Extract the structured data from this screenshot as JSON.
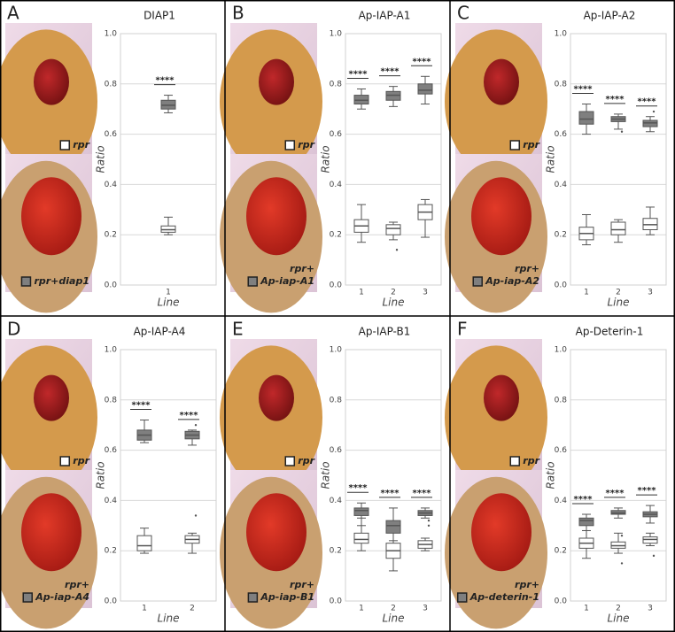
{
  "chart_data": [
    {
      "type": "box",
      "panel": "A",
      "title": "DIAP1",
      "xlabel": "Line",
      "ylabel": "Ratio",
      "categories": [
        "1"
      ],
      "ylim": [
        0,
        1
      ],
      "yticks": [
        {
          "value": 0,
          "label": "0.0"
        },
        0.2,
        0.4,
        0.6,
        0.8,
        {
          "value": 1,
          "label": "1.0"
        }
      ],
      "grid": true,
      "sig": [
        "****"
      ],
      "series": [
        {
          "name": [
            "rpr"
          ],
          "color": "#ffffff",
          "boxes": [
            {
              "whislo": 0.2,
              "q1": 0.21,
              "med": 0.22,
              "q3": 0.235,
              "whishi": 0.27
            }
          ]
        },
        {
          "name": [
            "rpr+diap1"
          ],
          "color": "#7f7f7f",
          "boxes": [
            {
              "whislo": 0.685,
              "q1": 0.7,
              "med": 0.715,
              "q3": 0.735,
              "whishi": 0.755
            }
          ]
        }
      ]
    },
    {
      "type": "box",
      "panel": "B",
      "title": "Ap-IAP-A1",
      "xlabel": "Line",
      "ylabel": "Ratio",
      "categories": [
        "1",
        "2",
        "3"
      ],
      "ylim": [
        0,
        1
      ],
      "yticks": [
        {
          "value": 0,
          "label": "0.0"
        },
        0.2,
        0.4,
        0.6,
        0.8,
        {
          "value": 1,
          "label": "1.0"
        }
      ],
      "grid": true,
      "sig": [
        "****",
        "****",
        "****"
      ],
      "series": [
        {
          "name": [
            "rpr"
          ],
          "color": "#ffffff",
          "boxes": [
            {
              "whislo": 0.17,
              "q1": 0.21,
              "med": 0.235,
              "q3": 0.26,
              "whishi": 0.32
            },
            {
              "whislo": 0.18,
              "q1": 0.2,
              "med": 0.225,
              "q3": 0.24,
              "whishi": 0.25,
              "fliers": [
                0.14
              ]
            },
            {
              "whislo": 0.19,
              "q1": 0.26,
              "med": 0.29,
              "q3": 0.32,
              "whishi": 0.34
            }
          ]
        },
        {
          "name": [
            "rpr+",
            "Ap-iap-A1"
          ],
          "color": "#7f7f7f",
          "boxes": [
            {
              "whislo": 0.7,
              "q1": 0.72,
              "med": 0.735,
              "q3": 0.755,
              "whishi": 0.78
            },
            {
              "whislo": 0.71,
              "q1": 0.735,
              "med": 0.755,
              "q3": 0.77,
              "whishi": 0.79
            },
            {
              "whislo": 0.72,
              "q1": 0.76,
              "med": 0.775,
              "q3": 0.8,
              "whishi": 0.83
            }
          ]
        }
      ]
    },
    {
      "type": "box",
      "panel": "C",
      "title": "Ap-IAP-A2",
      "xlabel": "Line",
      "ylabel": "Ratio",
      "categories": [
        "1",
        "2",
        "3"
      ],
      "ylim": [
        0,
        1
      ],
      "yticks": [
        {
          "value": 0,
          "label": "0.0"
        },
        0.2,
        0.4,
        0.6,
        0.8,
        {
          "value": 1,
          "label": "1.0"
        }
      ],
      "grid": true,
      "sig": [
        "****",
        "****",
        "****"
      ],
      "series": [
        {
          "name": [
            "rpr"
          ],
          "color": "#ffffff",
          "boxes": [
            {
              "whislo": 0.16,
              "q1": 0.18,
              "med": 0.205,
              "q3": 0.23,
              "whishi": 0.28
            },
            {
              "whislo": 0.17,
              "q1": 0.2,
              "med": 0.22,
              "q3": 0.25,
              "whishi": 0.26
            },
            {
              "whislo": 0.2,
              "q1": 0.22,
              "med": 0.24,
              "q3": 0.265,
              "whishi": 0.31
            }
          ]
        },
        {
          "name": [
            "rpr+",
            "Ap-iap-A2"
          ],
          "color": "#7f7f7f",
          "boxes": [
            {
              "whislo": 0.6,
              "q1": 0.64,
              "med": 0.66,
              "q3": 0.69,
              "whishi": 0.72
            },
            {
              "whislo": 0.62,
              "q1": 0.65,
              "med": 0.66,
              "q3": 0.67,
              "whishi": 0.68,
              "fliers": [
                0.61
              ]
            },
            {
              "whislo": 0.61,
              "q1": 0.63,
              "med": 0.645,
              "q3": 0.655,
              "whishi": 0.67,
              "fliers": [
                0.69
              ]
            }
          ]
        }
      ]
    },
    {
      "type": "box",
      "panel": "D",
      "title": "Ap-IAP-A4",
      "xlabel": "Line",
      "ylabel": "Ratio",
      "categories": [
        "1",
        "2"
      ],
      "ylim": [
        0,
        1
      ],
      "yticks": [
        {
          "value": 0,
          "label": "0.0"
        },
        0.2,
        0.4,
        0.6,
        0.8,
        {
          "value": 1,
          "label": "1.0"
        }
      ],
      "grid": true,
      "sig": [
        "****",
        "****"
      ],
      "series": [
        {
          "name": [
            "rpr"
          ],
          "color": "#ffffff",
          "boxes": [
            {
              "whislo": 0.19,
              "q1": 0.2,
              "med": 0.22,
              "q3": 0.26,
              "whishi": 0.29
            },
            {
              "whislo": 0.19,
              "q1": 0.23,
              "med": 0.245,
              "q3": 0.26,
              "whishi": 0.27,
              "fliers": [
                0.34
              ]
            }
          ]
        },
        {
          "name": [
            "rpr+",
            "Ap-iap-A4"
          ],
          "color": "#7f7f7f",
          "boxes": [
            {
              "whislo": 0.63,
              "q1": 0.64,
              "med": 0.66,
              "q3": 0.68,
              "whishi": 0.72
            },
            {
              "whislo": 0.62,
              "q1": 0.645,
              "med": 0.66,
              "q3": 0.675,
              "whishi": 0.68,
              "fliers": [
                0.7
              ]
            }
          ]
        }
      ]
    },
    {
      "type": "box",
      "panel": "E",
      "title": "Ap-IAP-B1",
      "xlabel": "Line",
      "ylabel": "Ratio",
      "categories": [
        "1",
        "2",
        "3"
      ],
      "ylim": [
        0,
        1
      ],
      "yticks": [
        {
          "value": 0,
          "label": "0.0"
        },
        0.2,
        0.4,
        0.6,
        0.8,
        {
          "value": 1,
          "label": "1.0"
        }
      ],
      "grid": true,
      "sig": [
        "****",
        "****",
        "****"
      ],
      "series": [
        {
          "name": [
            "rpr"
          ],
          "color": "#ffffff",
          "boxes": [
            {
              "whislo": 0.2,
              "q1": 0.23,
              "med": 0.245,
              "q3": 0.27,
              "whishi": 0.33
            },
            {
              "whislo": 0.12,
              "q1": 0.17,
              "med": 0.2,
              "q3": 0.23,
              "whishi": 0.28
            },
            {
              "whislo": 0.2,
              "q1": 0.21,
              "med": 0.225,
              "q3": 0.24,
              "whishi": 0.25
            }
          ]
        },
        {
          "name": [
            "rpr+",
            "Ap-iap-B1"
          ],
          "color": "#7f7f7f",
          "boxes": [
            {
              "whislo": 0.3,
              "q1": 0.34,
              "med": 0.36,
              "q3": 0.37,
              "whishi": 0.39
            },
            {
              "whislo": 0.24,
              "q1": 0.27,
              "med": 0.3,
              "q3": 0.32,
              "whishi": 0.37
            },
            {
              "whislo": 0.33,
              "q1": 0.34,
              "med": 0.35,
              "q3": 0.36,
              "whishi": 0.37,
              "fliers": [
                0.3,
                0.32
              ]
            }
          ]
        }
      ]
    },
    {
      "type": "box",
      "panel": "F",
      "title": "Ap-Deterin-1",
      "xlabel": "Line",
      "ylabel": "Ratio",
      "categories": [
        "1",
        "2",
        "3"
      ],
      "ylim": [
        0,
        1
      ],
      "yticks": [
        {
          "value": 0,
          "label": "0.0"
        },
        0.2,
        0.4,
        0.6,
        0.8,
        {
          "value": 1,
          "label": "1.0"
        }
      ],
      "grid": true,
      "sig": [
        "****",
        "****",
        "****"
      ],
      "series": [
        {
          "name": [
            "rpr"
          ],
          "color": "#ffffff",
          "boxes": [
            {
              "whislo": 0.17,
              "q1": 0.21,
              "med": 0.23,
              "q3": 0.25,
              "whishi": 0.28
            },
            {
              "whislo": 0.19,
              "q1": 0.21,
              "med": 0.22,
              "q3": 0.235,
              "whishi": 0.27,
              "fliers": [
                0.15
              ]
            },
            {
              "whislo": 0.22,
              "q1": 0.23,
              "med": 0.245,
              "q3": 0.255,
              "whishi": 0.27,
              "fliers": [
                0.18
              ]
            }
          ]
        },
        {
          "name": [
            "rpr+",
            "Ap-deterin-1"
          ],
          "color": "#7f7f7f",
          "boxes": [
            {
              "whislo": 0.28,
              "q1": 0.3,
              "med": 0.32,
              "q3": 0.33,
              "whishi": 0.345
            },
            {
              "whislo": 0.33,
              "q1": 0.345,
              "med": 0.35,
              "q3": 0.36,
              "whishi": 0.37,
              "fliers": [
                0.26
              ]
            },
            {
              "whislo": 0.31,
              "q1": 0.335,
              "med": 0.345,
              "q3": 0.355,
              "whishi": 0.38
            }
          ]
        }
      ]
    }
  ]
}
